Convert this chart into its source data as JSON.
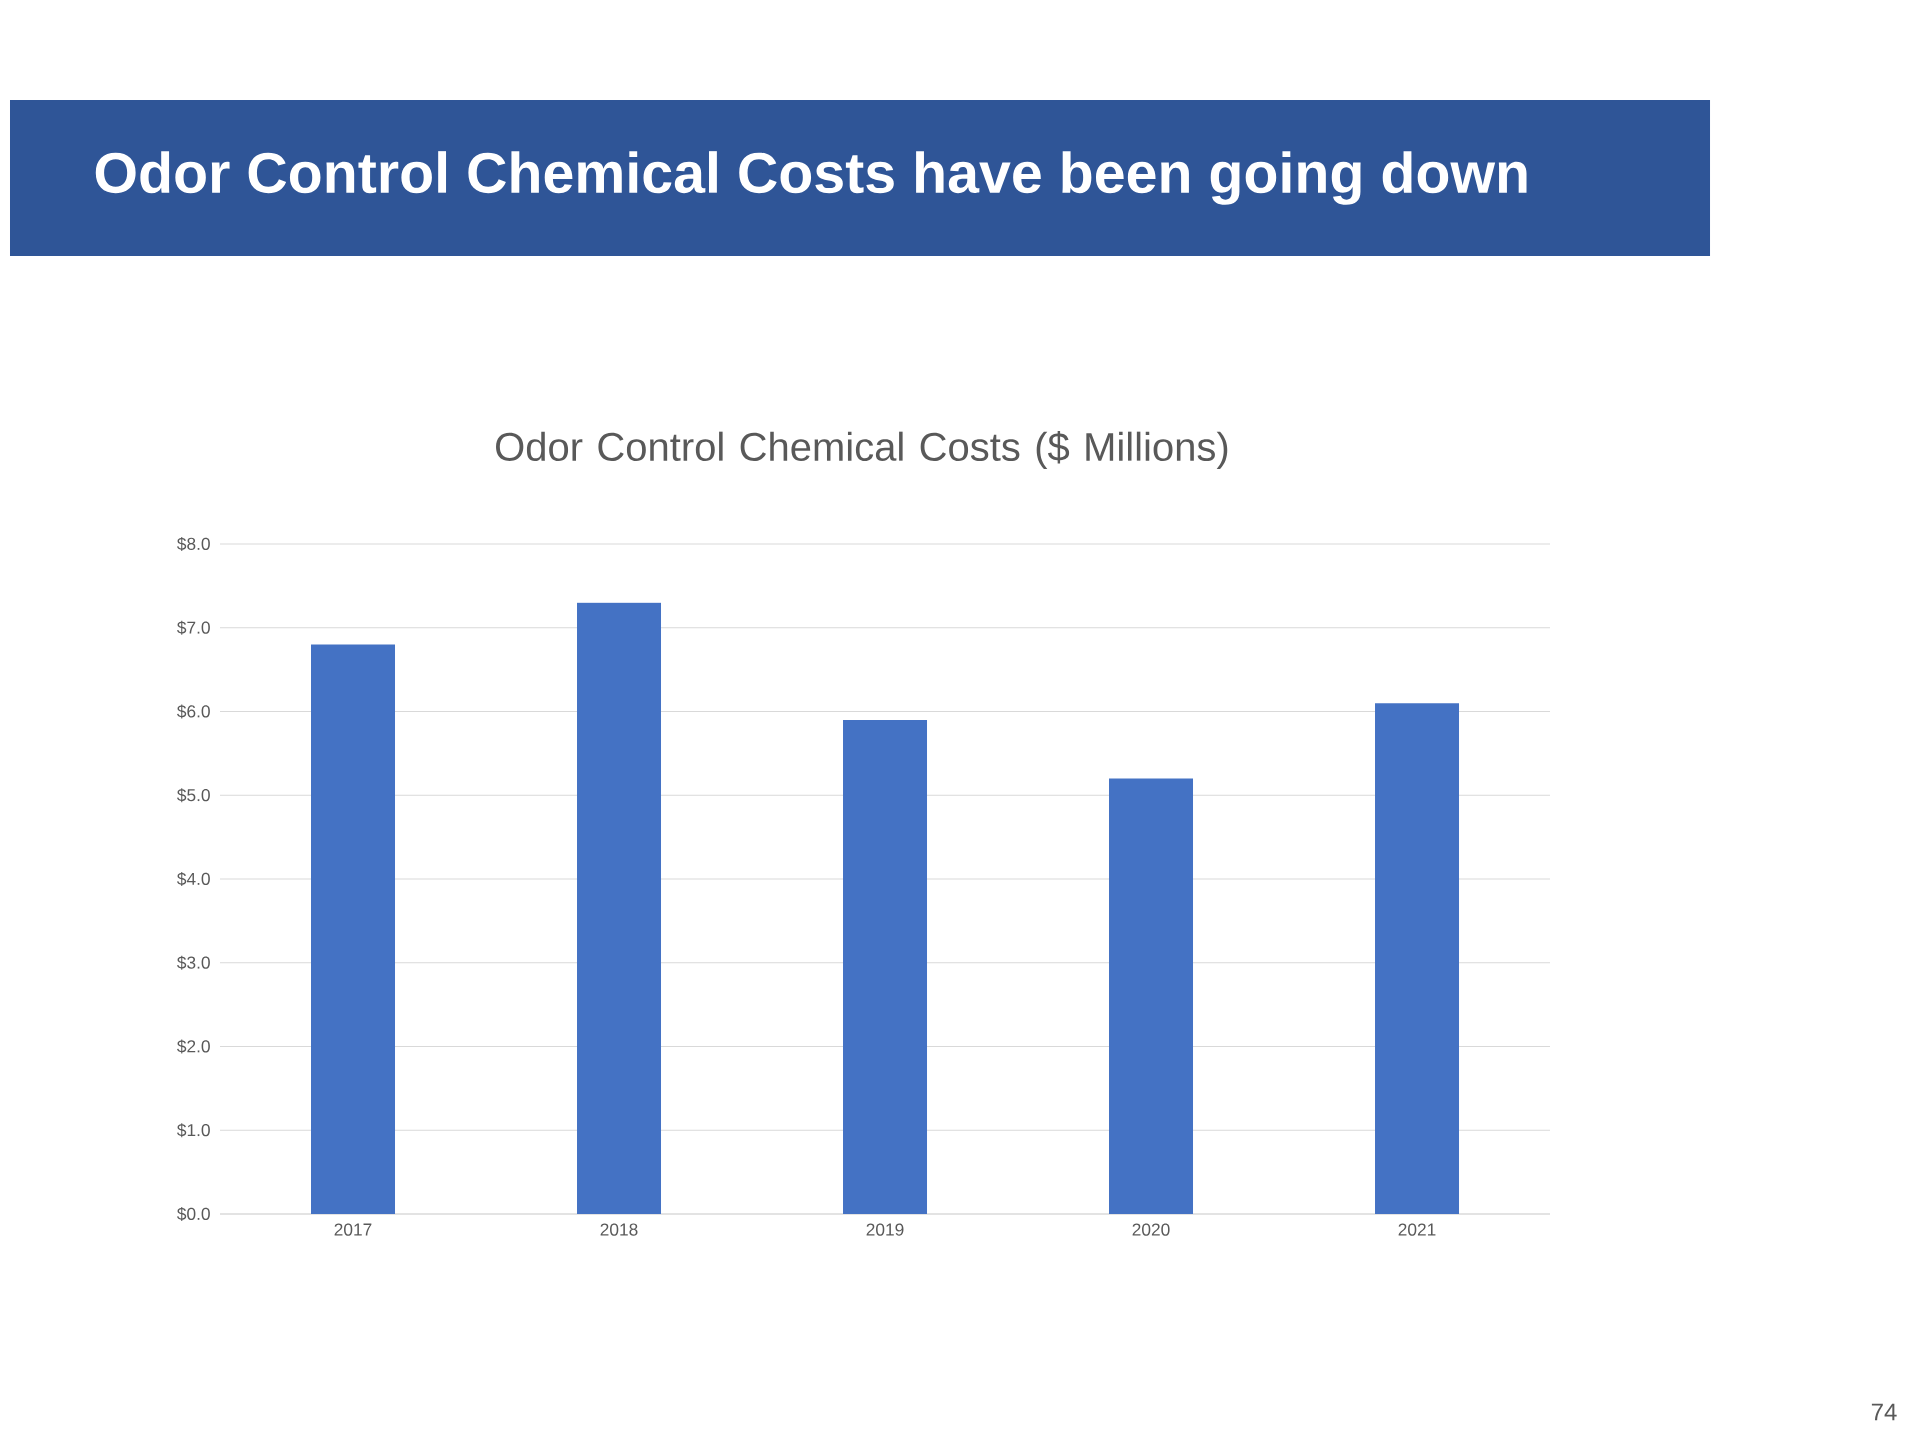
{
  "chart_data": {
    "type": "bar",
    "title": "Odor Control Chemical Costs have been going down",
    "subtitle": "Odor Control Chemical Costs ($ Millions)",
    "categories": [
      "2017",
      "2018",
      "2019",
      "2020",
      "2021"
    ],
    "values": [
      6.8,
      7.3,
      5.9,
      5.2,
      6.1
    ],
    "color": "#4472c4",
    "ylim": [
      0,
      8
    ],
    "yticks": [
      {
        "value": 0,
        "label": "$0.0"
      },
      {
        "value": 1,
        "label": "$1.0"
      },
      {
        "value": 2,
        "label": "$2.0"
      },
      {
        "value": 3,
        "label": "$3.0"
      },
      {
        "value": 4,
        "label": "$4.0"
      },
      {
        "value": 5,
        "label": "$5.0"
      },
      {
        "value": 6,
        "label": "$6.0"
      },
      {
        "value": 7,
        "label": "$7.0"
      },
      {
        "value": 8,
        "label": "$8.0"
      }
    ],
    "grid": "y",
    "annotations": [
      "74"
    ]
  }
}
